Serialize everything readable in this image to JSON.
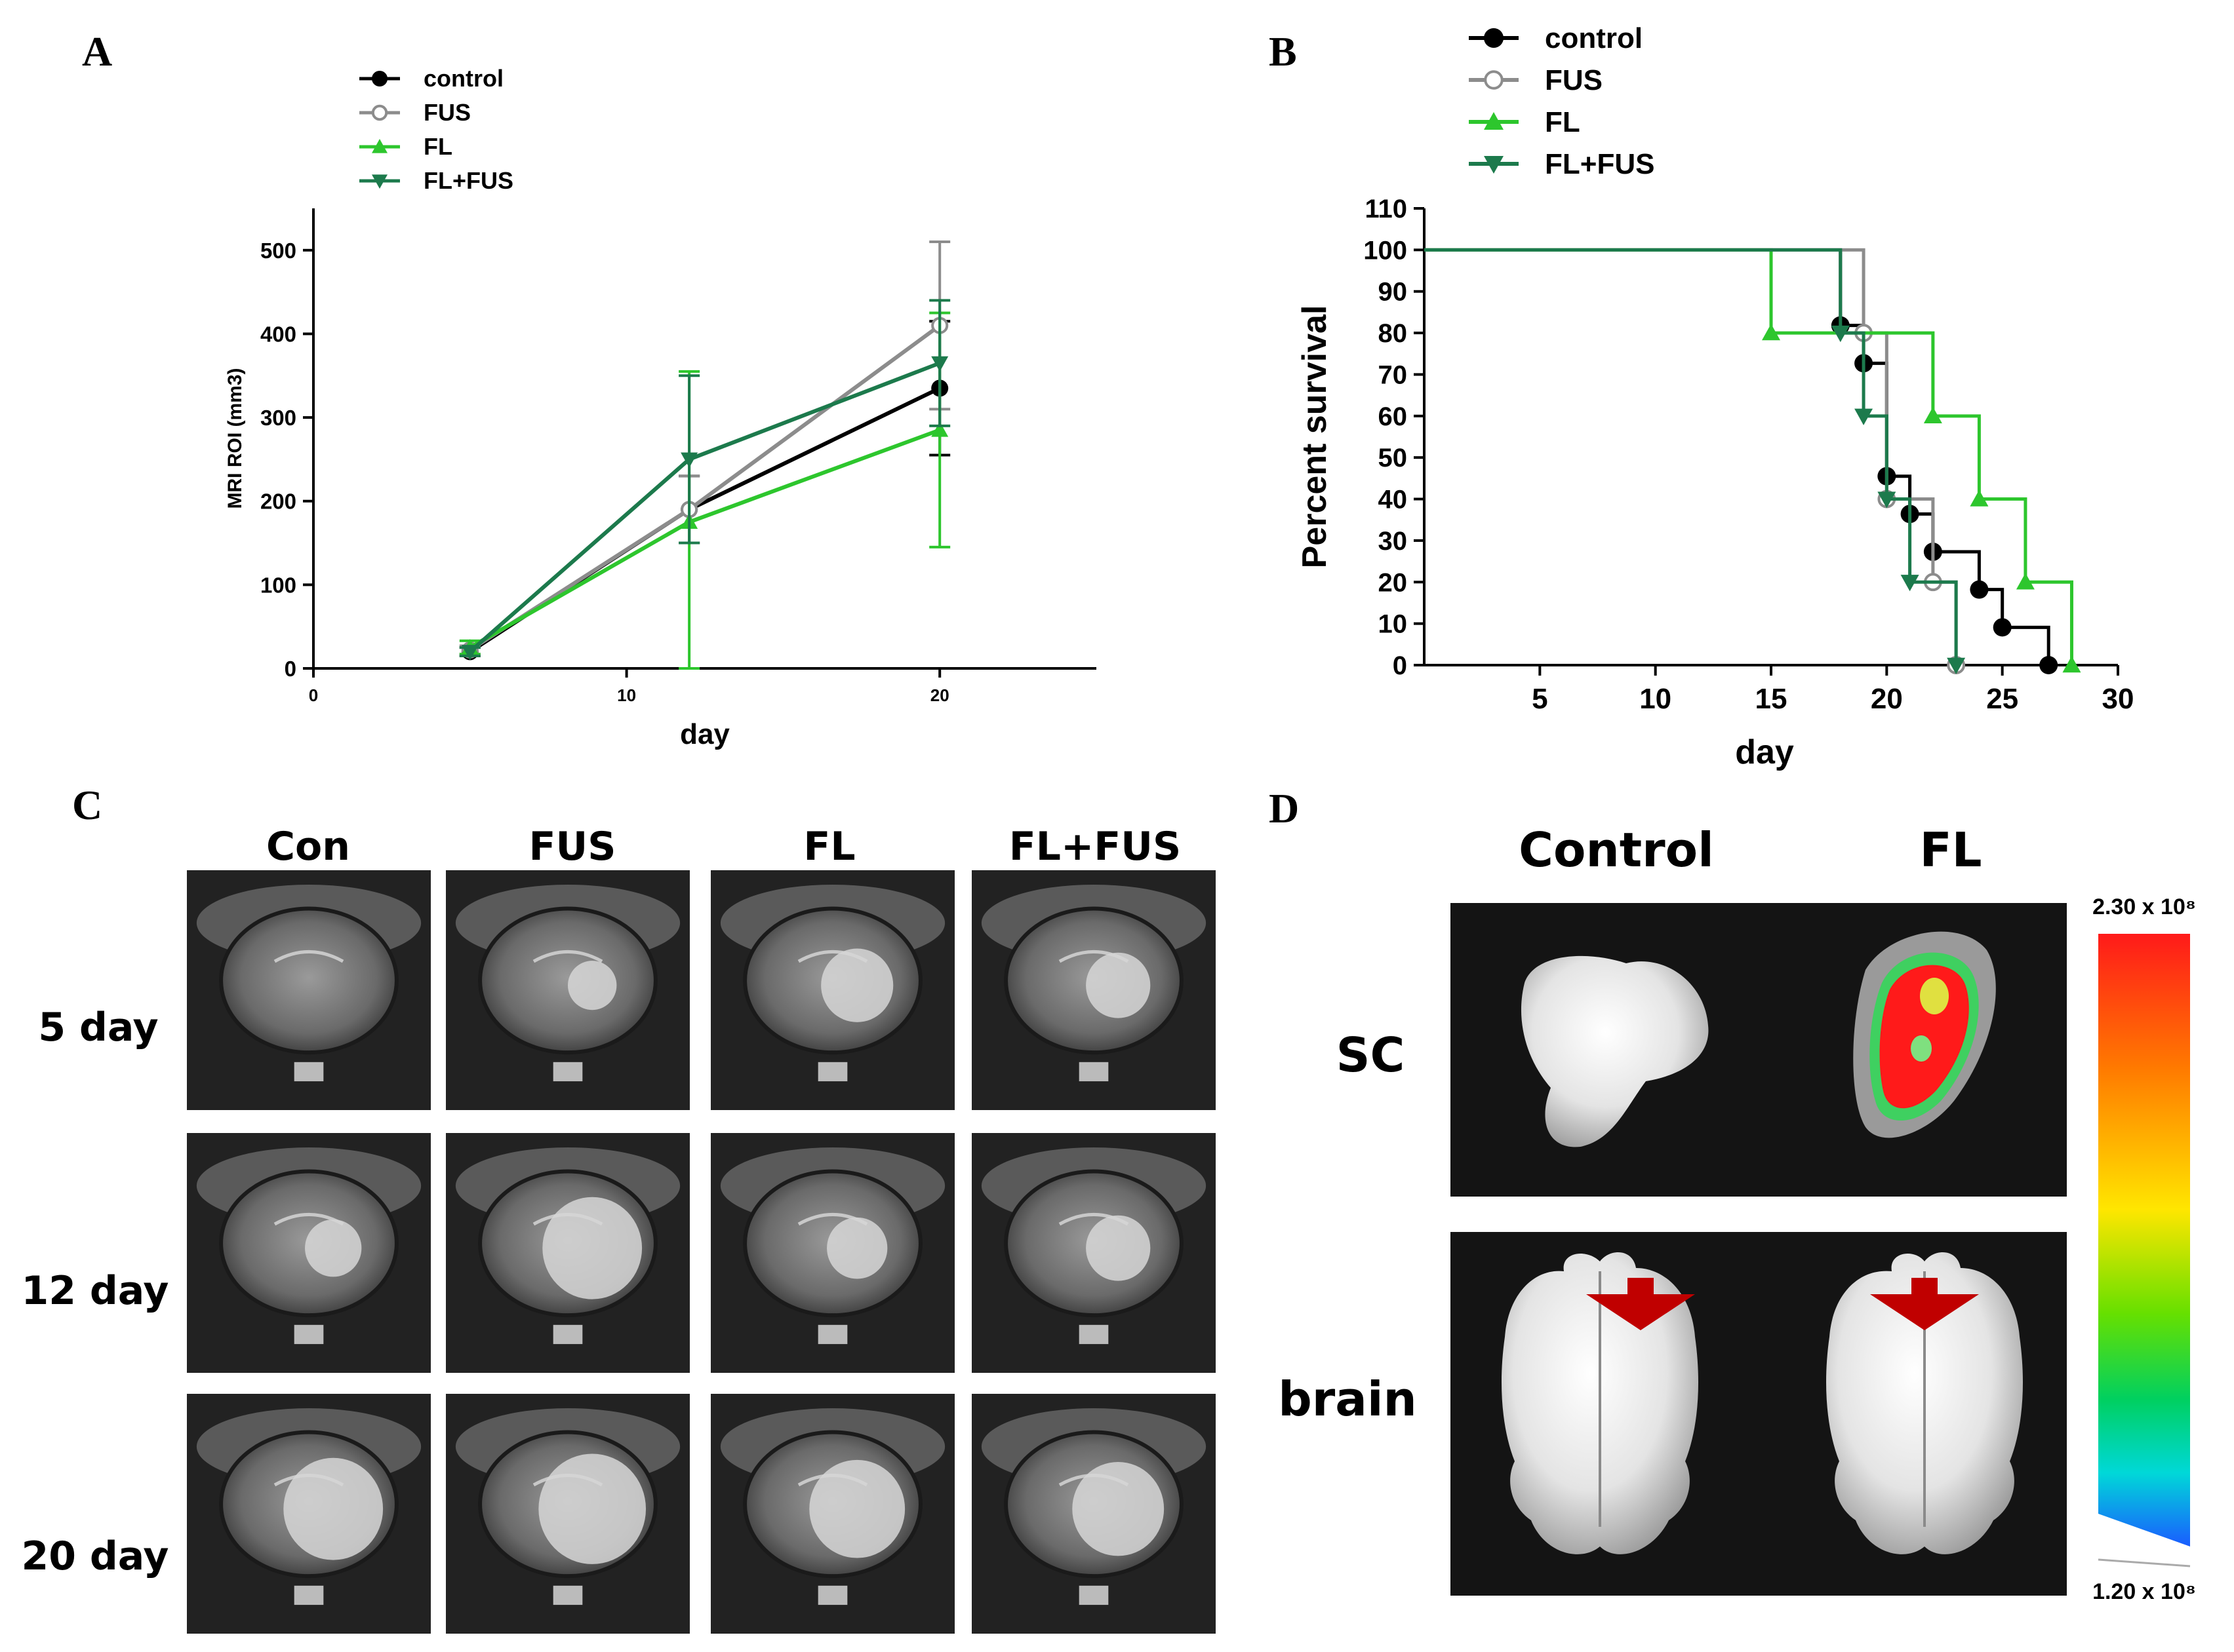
{
  "panels": {
    "A": {
      "letter": "A"
    },
    "B": {
      "letter": "B"
    },
    "C": {
      "letter": "C",
      "columns": [
        "Con",
        "FUS",
        "FL",
        "FL+FUS"
      ],
      "rows": [
        "5 day",
        "12 day",
        "20 day"
      ]
    },
    "D": {
      "letter": "D",
      "columns": [
        "Control",
        "FL"
      ],
      "rows": [
        "SC",
        "brain"
      ],
      "colorbar": {
        "max_label": "2.30 x 10⁸",
        "min_label": "1.20 x 10⁸"
      }
    }
  },
  "colors": {
    "control": "#000000",
    "FUS": "#8c8c8c",
    "FL": "#2dc62d",
    "FL+FUS": "#1c7a4c",
    "arrow": "#c00000"
  },
  "chart_data": [
    {
      "id": "A",
      "type": "line",
      "xlabel": "day",
      "ylabel": "MRI ROI (mm3)",
      "xlim": [
        0,
        25
      ],
      "ylim": [
        0,
        550
      ],
      "xticks": [
        0,
        10,
        20
      ],
      "yticks": [
        0,
        100,
        200,
        300,
        400,
        500
      ],
      "legend": "top-left",
      "x": [
        5,
        12,
        20
      ],
      "series": [
        {
          "name": "control",
          "marker": "circle-filled",
          "values": [
            20,
            190,
            335
          ],
          "err": [
            5,
            40,
            80
          ]
        },
        {
          "name": "FUS",
          "marker": "circle-open",
          "values": [
            22,
            190,
            410
          ],
          "err": [
            5,
            40,
            100
          ]
        },
        {
          "name": "FL",
          "marker": "triangle-up",
          "values": [
            25,
            175,
            285
          ],
          "err": [
            8,
            180,
            140
          ]
        },
        {
          "name": "FL+FUS",
          "marker": "triangle-down",
          "values": [
            20,
            250,
            365
          ],
          "err": [
            5,
            100,
            75
          ]
        }
      ]
    },
    {
      "id": "B",
      "type": "line",
      "subtype": "survival-step",
      "xlabel": "day",
      "ylabel": "Percent survival",
      "xlim": [
        0,
        30
      ],
      "ylim": [
        0,
        110
      ],
      "xticks": [
        5,
        10,
        15,
        20,
        25,
        30
      ],
      "yticks": [
        0,
        10,
        20,
        30,
        40,
        50,
        60,
        70,
        80,
        90,
        100,
        110
      ],
      "legend": "top-left",
      "series": [
        {
          "name": "control",
          "marker": "circle-filled",
          "steps": [
            [
              0,
              100
            ],
            [
              18,
              81.8
            ],
            [
              19,
              72.7
            ],
            [
              20,
              45.5
            ],
            [
              21,
              36.4
            ],
            [
              22,
              27.3
            ],
            [
              24,
              18.2
            ],
            [
              25,
              9.1
            ],
            [
              27,
              0
            ]
          ],
          "markers": [
            [
              18,
              81.8
            ],
            [
              19,
              72.7
            ],
            [
              20,
              45.5
            ],
            [
              21,
              36.4
            ],
            [
              22,
              27.3
            ],
            [
              24,
              18.2
            ],
            [
              25,
              9.1
            ],
            [
              27,
              0
            ]
          ]
        },
        {
          "name": "FUS",
          "marker": "circle-open",
          "steps": [
            [
              0,
              100
            ],
            [
              19,
              80
            ],
            [
              20,
              40
            ],
            [
              22,
              20
            ],
            [
              23,
              0
            ]
          ],
          "markers": [
            [
              19,
              80
            ],
            [
              20,
              40
            ],
            [
              22,
              20
            ],
            [
              23,
              0
            ]
          ]
        },
        {
          "name": "FL",
          "marker": "triangle-up",
          "steps": [
            [
              0,
              100
            ],
            [
              15,
              80
            ],
            [
              22,
              60
            ],
            [
              24,
              40
            ],
            [
              26,
              20
            ],
            [
              28,
              0
            ]
          ],
          "markers": [
            [
              15,
              80
            ],
            [
              22,
              60
            ],
            [
              24,
              40
            ],
            [
              26,
              20
            ],
            [
              28,
              0
            ]
          ]
        },
        {
          "name": "FL+FUS",
          "marker": "triangle-down",
          "steps": [
            [
              0,
              100
            ],
            [
              18,
              80
            ],
            [
              19,
              60
            ],
            [
              20,
              40
            ],
            [
              21,
              20
            ],
            [
              23,
              0
            ]
          ],
          "markers": [
            [
              18,
              80
            ],
            [
              19,
              60
            ],
            [
              20,
              40
            ],
            [
              21,
              20
            ],
            [
              23,
              0
            ]
          ]
        }
      ]
    }
  ]
}
